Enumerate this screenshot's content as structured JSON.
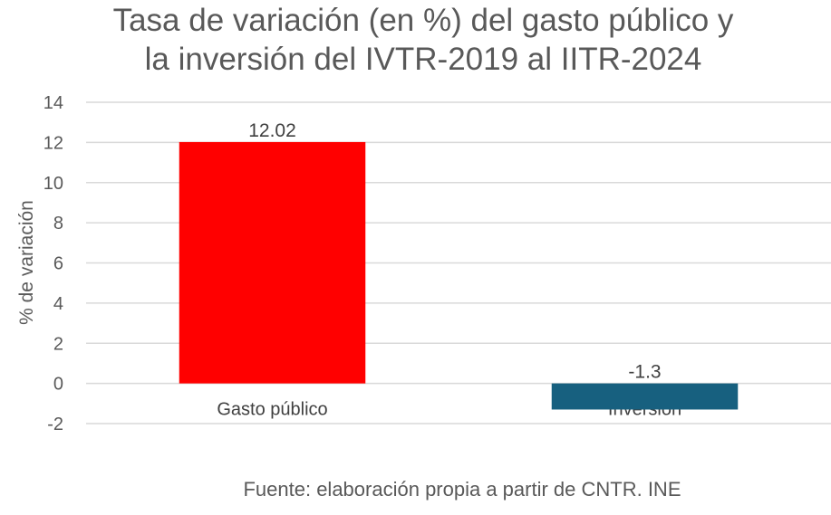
{
  "chart_data": {
    "type": "bar",
    "title_lines": [
      "Tasa de variación (en %) del gasto público y",
      "la inversión del IVTR-2019 al IITR-2024"
    ],
    "ylabel": "% de variación",
    "xlabel": "",
    "ylim": [
      -2,
      14
    ],
    "yticks": [
      -2,
      0,
      2,
      4,
      6,
      8,
      10,
      12,
      14
    ],
    "grid": true,
    "categories": [
      "Gasto público",
      "Inversión"
    ],
    "values": [
      12.02,
      -1.3
    ],
    "data_labels": [
      "12.02",
      "-1.3"
    ],
    "colors": [
      "#ff0000",
      "#17607f"
    ],
    "source": "Fuente: elaboración propia a partir de CNTR. INE"
  }
}
